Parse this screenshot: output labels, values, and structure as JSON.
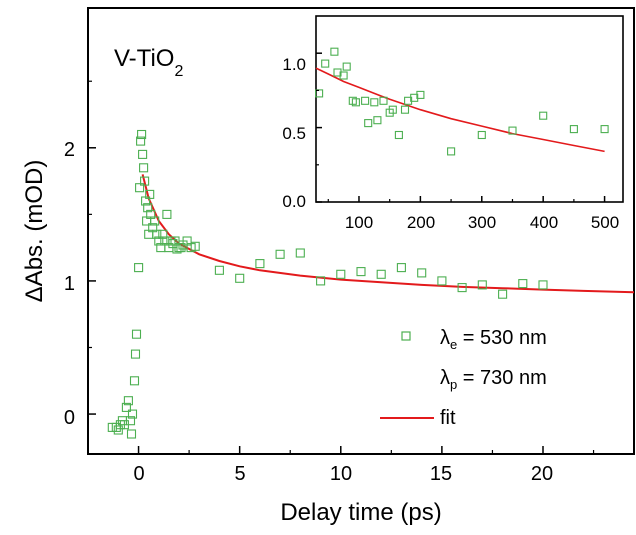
{
  "chart_data": [
    {
      "type": "scatter",
      "title": "",
      "xlabel": "Delay time (ps)",
      "ylabel": "ΔAbs. (mOD)",
      "xlim": [
        -2.5,
        24.5
      ],
      "ylim": [
        -0.3,
        3.05
      ],
      "x_ticks": [
        "0",
        "5",
        "10",
        "15",
        "20"
      ],
      "y_ticks": [
        "0",
        "1",
        "2"
      ],
      "sample_label": {
        "main": "V-TiO",
        "sub": "2"
      },
      "legend": [
        {
          "symbol": "λ",
          "sub": "e",
          "text": " = 530 nm",
          "marker": "square",
          "color": "#4CAF50"
        },
        {
          "symbol": "λ",
          "sub": "p",
          "text": " = 730 nm",
          "marker": "none",
          "color": ""
        },
        {
          "text": "fit",
          "marker": "line",
          "color": "#E31A1C"
        }
      ],
      "series": [
        {
          "name": "λe = 530 nm",
          "marker": "open-square",
          "color": "#4CAF50",
          "x": [
            -1.3,
            -1.1,
            -1.0,
            -0.9,
            -0.8,
            -0.7,
            -0.6,
            -0.5,
            -0.4,
            -0.35,
            -0.3,
            -0.2,
            -0.15,
            -0.1,
            0.0,
            0.05,
            0.1,
            0.15,
            0.2,
            0.25,
            0.3,
            0.35,
            0.4,
            0.45,
            0.5,
            0.55,
            0.6,
            0.7,
            0.8,
            0.9,
            1.0,
            1.1,
            1.2,
            1.3,
            1.4,
            1.5,
            1.6,
            1.7,
            1.8,
            1.9,
            2.0,
            2.1,
            2.2,
            2.4,
            2.6,
            2.8,
            4.0,
            5.0,
            6.0,
            7.0,
            8.0,
            9.0,
            10.0,
            11.0,
            12.0,
            13.0,
            14.0,
            15.0,
            16.0,
            17.0,
            18.0,
            19.0,
            20.0
          ],
          "y": [
            -0.1,
            -0.1,
            -0.12,
            -0.08,
            -0.05,
            -0.08,
            0.05,
            0.1,
            -0.05,
            -0.15,
            0.0,
            0.25,
            0.45,
            0.6,
            1.1,
            1.7,
            2.05,
            2.1,
            1.95,
            1.85,
            1.75,
            1.6,
            1.45,
            1.55,
            1.35,
            1.65,
            1.5,
            1.4,
            1.45,
            1.35,
            1.3,
            1.25,
            1.35,
            1.3,
            1.5,
            1.25,
            1.3,
            1.28,
            1.3,
            1.24,
            1.25,
            1.25,
            1.27,
            1.3,
            1.25,
            1.26,
            1.08,
            1.02,
            1.13,
            1.2,
            1.21,
            1.0,
            1.05,
            1.07,
            1.05,
            1.1,
            1.06,
            1.0,
            0.95,
            0.97,
            0.9,
            0.98,
            0.97
          ]
        },
        {
          "name": "fit",
          "marker": "line",
          "color": "#E31A1C",
          "x": [
            0.2,
            0.5,
            1.0,
            1.5,
            2.0,
            3.0,
            4.0,
            5.0,
            6.0,
            8.0,
            10.0,
            12.0,
            14.0,
            16.0,
            18.0,
            20.0,
            22.0,
            24.5
          ],
          "y": [
            1.8,
            1.62,
            1.45,
            1.35,
            1.28,
            1.2,
            1.15,
            1.11,
            1.08,
            1.04,
            1.01,
            0.99,
            0.97,
            0.955,
            0.945,
            0.935,
            0.925,
            0.915
          ]
        }
      ]
    },
    {
      "type": "scatter",
      "title": "",
      "xlabel": "",
      "ylabel": "",
      "xlim": [
        30,
        530
      ],
      "ylim": [
        0.0,
        1.25
      ],
      "x_ticks": [
        "100",
        "200",
        "300",
        "400",
        "500"
      ],
      "y_ticks": [
        "0.0",
        "0.5",
        "1.0"
      ],
      "series": [
        {
          "name": "λe = 530 nm",
          "marker": "open-square",
          "color": "#4CAF50",
          "x": [
            35,
            45,
            60,
            65,
            75,
            80,
            90,
            95,
            110,
            115,
            125,
            130,
            140,
            150,
            155,
            165,
            175,
            180,
            190,
            200,
            250,
            300,
            350,
            400,
            450,
            500
          ],
          "y": [
            0.73,
            0.93,
            1.01,
            0.87,
            0.85,
            0.91,
            0.68,
            0.67,
            0.68,
            0.53,
            0.67,
            0.55,
            0.68,
            0.6,
            0.62,
            0.45,
            0.62,
            0.68,
            0.7,
            0.72,
            0.34,
            0.45,
            0.48,
            0.58,
            0.49,
            0.49
          ]
        },
        {
          "name": "fit",
          "marker": "line",
          "color": "#E31A1C",
          "x": [
            30,
            50,
            75,
            100,
            125,
            150,
            200,
            250,
            300,
            350,
            400,
            450,
            500
          ],
          "y": [
            0.9,
            0.86,
            0.81,
            0.77,
            0.73,
            0.69,
            0.62,
            0.56,
            0.51,
            0.46,
            0.42,
            0.38,
            0.34
          ]
        }
      ]
    }
  ]
}
